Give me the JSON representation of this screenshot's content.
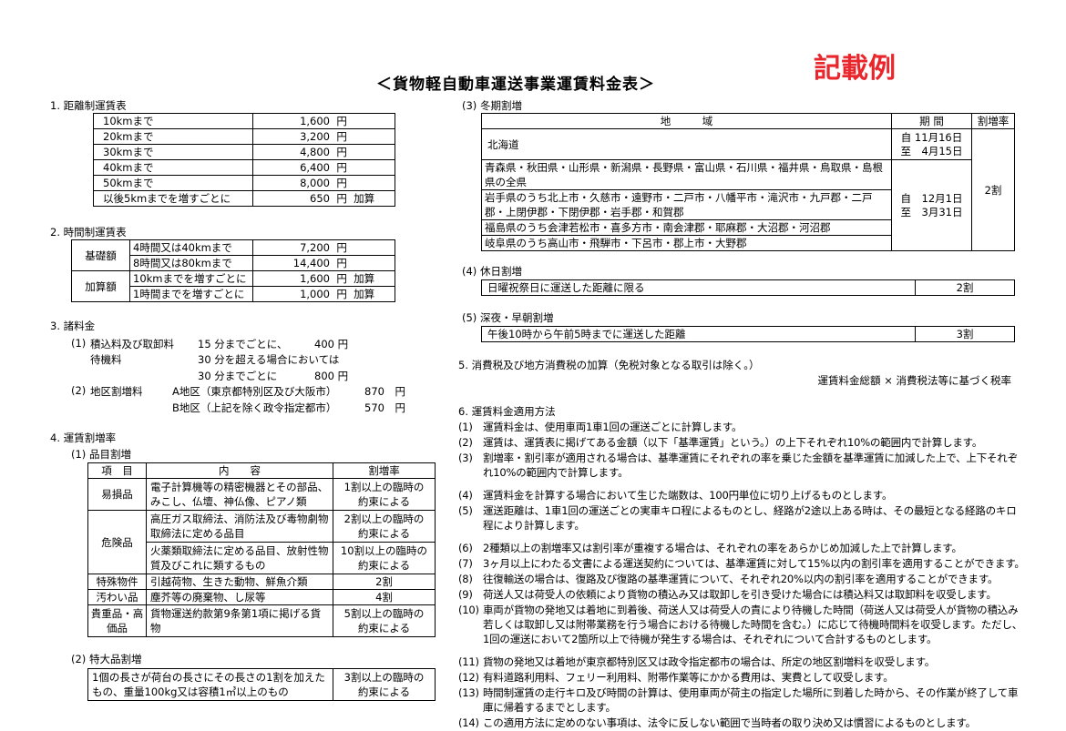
{
  "title": "＜貨物軽自動車運送事業運賃料金表＞",
  "stamp": "記載例",
  "s1": {
    "heading": "1. 距離制運賃表",
    "rows": [
      {
        "label": "10kmまで",
        "value": "1,600",
        "unit": "円",
        "note": ""
      },
      {
        "label": "20kmまで",
        "value": "3,200",
        "unit": "円",
        "note": ""
      },
      {
        "label": "30kmまで",
        "value": "4,800",
        "unit": "円",
        "note": ""
      },
      {
        "label": "40kmまで",
        "value": "6,400",
        "unit": "円",
        "note": ""
      },
      {
        "label": "50kmまで",
        "value": "8,000",
        "unit": "円",
        "note": ""
      },
      {
        "label": "以後5kmまでを増すごとに",
        "value": "650",
        "unit": "円",
        "note": "加算"
      }
    ]
  },
  "s2": {
    "heading": "2. 時間制運賃表",
    "groups": [
      {
        "name": "基礎額",
        "rows": [
          {
            "label": "4時間又は40kmまで",
            "value": "7,200",
            "unit": "円",
            "note": ""
          },
          {
            "label": "8時間又は80kmまで",
            "value": "14,400",
            "unit": "円",
            "note": ""
          }
        ]
      },
      {
        "name": "加算額",
        "rows": [
          {
            "label": "10kmまでを増すごとに",
            "value": "1,600",
            "unit": "円",
            "note": "加算"
          },
          {
            "label": "1時間までを増すごとに",
            "value": "1,000",
            "unit": "円",
            "note": "加算"
          }
        ]
      }
    ]
  },
  "s3": {
    "heading": "3. 諸料金",
    "i1_no": "(1)",
    "i1_label1": "積込料及び取卸料",
    "i1_label2": "待機料",
    "i1_line1": "15 分までごとに、",
    "i1_val1": "400 円",
    "i1_line2": "30 分を超える場合においては",
    "i1_line3": "30 分までごとに",
    "i1_val3": "800 円",
    "i2_no": "(2)",
    "i2_label": "地区割増料",
    "i2_a": "A地区（東京都特別区及び大阪市）",
    "i2_a_val": "870　円",
    "i2_b": "B地区（上記を除く政令指定都市）",
    "i2_b_val": "570　円"
  },
  "s4": {
    "heading": "4. 運賃割増率",
    "sub1": "(1) 品目割増",
    "headers": [
      "項　目",
      "内　　容",
      "割増率"
    ],
    "rows": [
      {
        "item": "易損品",
        "content": "電子計算機等の精密機器とその部品、みこし、仏壇、神仏像、ピアノ類",
        "rate": "1割以上の臨時の約束による"
      },
      {
        "item": "危険品",
        "content": "高圧ガス取締法、消防法及び毒物劇物取締法に定める品目",
        "rate": "2割以上の臨時の約束による"
      },
      {
        "item": "",
        "content": "火薬類取締法に定める品目、放射性物質及びこれに類するもの",
        "rate": "10割以上の臨時の約束による"
      },
      {
        "item": "特殊物件",
        "content": "引越荷物、生きた動物、鮮魚介類",
        "rate": "2割"
      },
      {
        "item": "汚わい品",
        "content": "塵芥等の廃棄物、し尿等",
        "rate": "4割"
      },
      {
        "item": "貴重品・高価品",
        "content": "貨物運送約款第9条第1項に掲げる貨物",
        "rate": "5割以上の臨時の約束による"
      }
    ],
    "sub2": "(2) 特大品割増",
    "large": {
      "content": "1個の長さが荷台の長さにその長さの1割を加えたもの、重量100kg又は容積1㎥以上のもの",
      "rate": "3割以上の臨時の約束による"
    },
    "sub3": "(3) 冬期割増",
    "winter_headers": [
      "地　　　域",
      "期 間",
      "割増率"
    ],
    "winter_rows": [
      "北海道",
      "青森県・秋田県・山形県・新潟県・長野県・富山県・石川県・福井県・鳥取県・島根県の全県",
      "岩手県のうち北上市・久慈市・遠野市・二戸市・八幡平市・滝沢市・九戸郡・二戸郡・上閉伊郡・下閉伊郡・岩手郡・和賀郡",
      "福島県のうち会津若松市・喜多方市・南会津郡・耶麻郡・大沼郡・河沼郡",
      "岐阜県のうち高山市・飛騨市・下呂市・郡上市・大野郡"
    ],
    "winter_period1": [
      "自 11月16日",
      "至　4月15日"
    ],
    "winter_period2": [
      "自　12月1日",
      "至　3月31日"
    ],
    "winter_rate": "2割",
    "sub4": "(4) 休日割増",
    "holiday": {
      "content": "日曜祝祭日に運送した距離に限る",
      "rate": "2割"
    },
    "sub5": "(5) 深夜・早朝割増",
    "night": {
      "content": "午後10時から午前5時までに運送した距離",
      "rate": "3割"
    }
  },
  "s5": {
    "heading": "5. 消費税及び地方消費税の加算（免税対象となる取引は除く。）",
    "formula": "運賃料金総額 × 消費税法等に基づく税率"
  },
  "s6": {
    "heading": "6. 運賃料金適用方法",
    "items": [
      {
        "no": "(1)",
        "text": "運賃料金は、使用車両1車1回の運送ごとに計算します。"
      },
      {
        "no": "(2)",
        "text": "運賃は、運賃表に掲げてある金額（以下「基準運賃」という。）の上下それぞれ10%の範囲内で計算します。"
      },
      {
        "no": "(3)",
        "text": "割増率・割引率が適用される場合は、基準運賃にそれぞれの率を乗じた金額を基準運賃に加減した上で、上下それぞれ10%の範囲内で計算します。"
      },
      {
        "no": "(4)",
        "text": "運賃料金を計算する場合において生じた端数は、100円単位に切り上げるものとします。"
      },
      {
        "no": "(5)",
        "text": "運送距離は、1車1回の運送ごとの実車キロ程によるものとし、経路が2途以上ある時は、その最短となる経路のキロ程により計算します。"
      },
      {
        "no": "(6)",
        "text": "2種類以上の割増率又は割引率が重複する場合は、それぞれの率をあらかじめ加減した上で計算します。"
      },
      {
        "no": "(7)",
        "text": "3ヶ月以上にわたる文書による運送契約については、基準運賃に対して15%以内の割引率を適用することができます。"
      },
      {
        "no": "(8)",
        "text": "往復輸送の場合は、復路及び復路の基準運賃について、それぞれ20%以内の割引率を適用することができます。"
      },
      {
        "no": "(9)",
        "text": "荷送人又は荷受人の依頼により貨物の積込み又は取卸しを引き受けた場合には積込料又は取卸料を収受します。"
      },
      {
        "no": "(10)",
        "text": "車両が貨物の発地又は着地に到着後、荷送人又は荷受人の責により待機した時間（荷送人又は荷受人が貨物の積込み若しくは取卸し又は附帯業務を行う場合における待機した時間を含む。）に応じて待機時間料を収受します。ただし、1回の運送において2箇所以上で待機が発生する場合は、それぞれについて合計するものとします。"
      },
      {
        "no": "(11)",
        "text": "貨物の発地又は着地が東京都特別区又は政令指定都市の場合は、所定の地区割増料を収受します。"
      },
      {
        "no": "(12)",
        "text": "有料道路利用料、フェリー利用料、附帯作業等にかかる費用は、実費として収受します。"
      },
      {
        "no": "(13)",
        "text": "時間制運賃の走行キロ及び時間の計算は、使用車両が荷主の指定した場所に到着した時から、その作業が終了して車庫に帰着するまでとします。"
      },
      {
        "no": "(14)",
        "text": "この適用方法に定めのない事項は、法令に反しない範囲で当時者の取り決め又は慣習によるものとします。"
      }
    ]
  }
}
